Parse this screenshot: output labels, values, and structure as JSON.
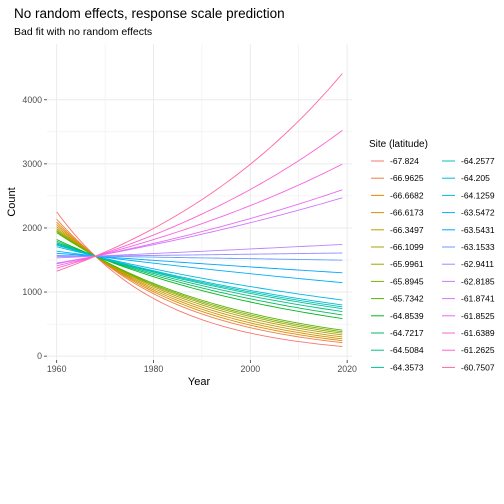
{
  "chart_data": {
    "type": "line",
    "title": "No random effects, response scale prediction",
    "subtitle": "Bad fit with no random effects",
    "xlabel": "Year",
    "ylabel": "Count",
    "xlim": [
      1958,
      2021
    ],
    "ylim": [
      -60,
      4870
    ],
    "x_ticks": [
      1960,
      1980,
      2000,
      2020
    ],
    "y_ticks": [
      0,
      1000,
      2000,
      3000,
      4000
    ],
    "grid": true,
    "legend_position": "right",
    "legend_title": "Site (latitude)",
    "x": [
      1960,
      2019
    ],
    "pivot": {
      "x": 1968,
      "y": 1560
    },
    "series": [
      {
        "name": "-67.824",
        "color": "#F8766D",
        "values": [
          2200,
          130
        ]
      },
      {
        "name": "-66.9625",
        "color": "#EE8043",
        "values": [
          2100,
          190
        ]
      },
      {
        "name": "-66.6682",
        "color": "#E38900",
        "values": [
          2060,
          220
        ]
      },
      {
        "name": "-66.6173",
        "color": "#D59100",
        "values": [
          2030,
          250
        ]
      },
      {
        "name": "-66.3497",
        "color": "#C49A00",
        "values": [
          2000,
          280
        ]
      },
      {
        "name": "-66.1099",
        "color": "#B09F00",
        "values": [
          1970,
          310
        ]
      },
      {
        "name": "-65.9961",
        "color": "#99A800",
        "values": [
          1940,
          330
        ]
      },
      {
        "name": "-65.8945",
        "color": "#7CAE00",
        "values": [
          1920,
          350
        ]
      },
      {
        "name": "-65.7342",
        "color": "#53B400",
        "values": [
          1900,
          370
        ]
      },
      {
        "name": "-64.8539",
        "color": "#00B81F",
        "values": [
          1820,
          590
        ]
      },
      {
        "name": "-64.7217",
        "color": "#00BC59",
        "values": [
          1800,
          660
        ]
      },
      {
        "name": "-64.5084",
        "color": "#00BF7D",
        "values": [
          1780,
          720
        ]
      },
      {
        "name": "-64.3573",
        "color": "#00C19C",
        "values": [
          1760,
          760
        ]
      },
      {
        "name": "-64.2577",
        "color": "#00C1B8",
        "values": [
          1750,
          790
        ]
      },
      {
        "name": "-64.205",
        "color": "#00BDD0",
        "values": [
          1740,
          820
        ]
      },
      {
        "name": "-64.1259",
        "color": "#00B8E5",
        "values": [
          1700,
          850
        ]
      },
      {
        "name": "-63.5472",
        "color": "#00B0F6",
        "values": [
          1640,
          1160
        ]
      },
      {
        "name": "-63.5431",
        "color": "#00A5FF",
        "values": [
          1620,
          1380
        ]
      },
      {
        "name": "-63.1533",
        "color": "#619CFF",
        "values": [
          1580,
          1560
        ]
      },
      {
        "name": "-62.9411",
        "color": "#9590FF",
        "values": [
          1560,
          1660
        ]
      },
      {
        "name": "-62.8185",
        "color": "#B983FF",
        "values": [
          1520,
          1650
        ]
      },
      {
        "name": "-61.8741",
        "color": "#D177FF",
        "values": [
          1470,
          2680
        ]
      },
      {
        "name": "-61.8525",
        "color": "#E76BF3",
        "values": [
          1450,
          2710
        ]
      },
      {
        "name": "-61.6389",
        "color": "#F564E3",
        "values": [
          1410,
          3020
        ]
      },
      {
        "name": "-61.2625",
        "color": "#FD61D1",
        "values": [
          1380,
          3640
        ]
      },
      {
        "name": "-60.7507",
        "color": "#FF67A4",
        "values": [
          1340,
          4730
        ]
      }
    ]
  }
}
